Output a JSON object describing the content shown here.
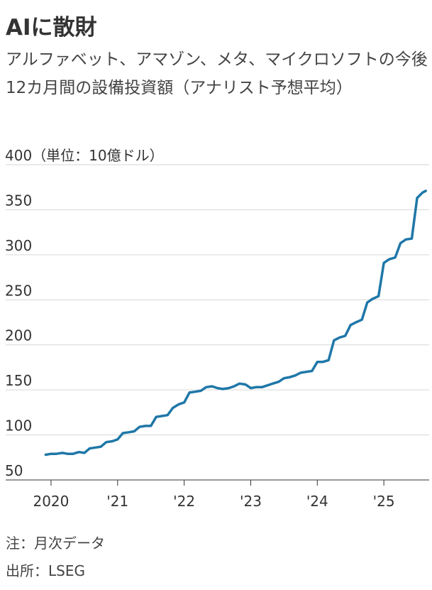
{
  "title": "AIに散財",
  "subtitle": "アルファベット、アマゾン、メタ、マイクロソフトの今後12カ月間の設備投資額（アナリスト予想平均）",
  "notes": {
    "note": "注：月次データ",
    "source": "出所：LSEG"
  },
  "chart_data": {
    "type": "line",
    "title": "AIに散財",
    "y_unit_label": "（単位：10億ドル）",
    "xlabel": "",
    "ylabel": "",
    "ylim": [
      50,
      400
    ],
    "y_ticks": [
      400,
      350,
      300,
      250,
      200,
      150,
      100,
      50
    ],
    "x_range": [
      2019.83,
      2025.67
    ],
    "x_ticks": [
      {
        "value": 2020,
        "label": "2020"
      },
      {
        "value": 2021,
        "label": "'21"
      },
      {
        "value": 2022,
        "label": "'22"
      },
      {
        "value": 2023,
        "label": "'23"
      },
      {
        "value": 2024,
        "label": "'24"
      },
      {
        "value": 2025,
        "label": "'25"
      }
    ],
    "grid": "horizontal",
    "line_color": "#1f77a8",
    "series": [
      {
        "x": [
          2019.92,
          2020.0,
          2020.08,
          2020.17,
          2020.25,
          2020.33,
          2020.42,
          2020.5,
          2020.58,
          2020.67,
          2020.75,
          2020.83,
          2020.92,
          2021.0,
          2021.08,
          2021.17,
          2021.25,
          2021.33,
          2021.42,
          2021.5,
          2021.58,
          2021.67,
          2021.75,
          2021.83,
          2021.92,
          2022.0,
          2022.08,
          2022.17,
          2022.25,
          2022.33,
          2022.42,
          2022.5,
          2022.58,
          2022.67,
          2022.75,
          2022.83,
          2022.92,
          2023.0,
          2023.08,
          2023.17,
          2023.25,
          2023.33,
          2023.42,
          2023.5,
          2023.58,
          2023.67,
          2023.75,
          2023.83,
          2023.92,
          2024.0,
          2024.08,
          2024.17,
          2024.25,
          2024.33,
          2024.42,
          2024.5,
          2024.58,
          2024.67,
          2024.75,
          2024.83,
          2024.92,
          2025.0,
          2025.08,
          2025.17,
          2025.25,
          2025.33,
          2025.42,
          2025.5,
          2025.58,
          2025.63
        ],
        "values": [
          78,
          79,
          79,
          80,
          79,
          79,
          81,
          80,
          85,
          86,
          87,
          92,
          93,
          95,
          102,
          103,
          104,
          109,
          110,
          110,
          120,
          121,
          122,
          130,
          134,
          136,
          147,
          148,
          149,
          153,
          154,
          152,
          151,
          152,
          154,
          157,
          156,
          152,
          153,
          153,
          155,
          157,
          159,
          163,
          164,
          166,
          169,
          170,
          171,
          181,
          181,
          183,
          205,
          208,
          210,
          222,
          225,
          228,
          247,
          251,
          254,
          291,
          295,
          297,
          313,
          317,
          318,
          363,
          369,
          371
        ]
      }
    ]
  }
}
